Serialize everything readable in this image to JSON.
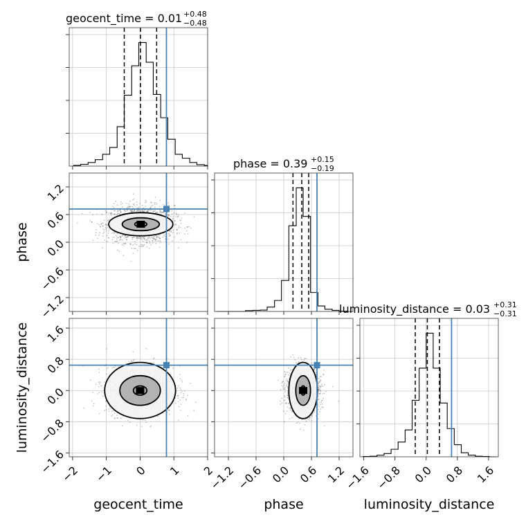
{
  "chart_data": {
    "type": "corner",
    "parameters": [
      "geocent_time",
      "phase",
      "luminosity_distance"
    ],
    "axis_labels": {
      "x": [
        "geocent_time",
        "phase",
        "luminosity_distance"
      ],
      "y": [
        "phase",
        "luminosity_distance"
      ]
    },
    "truths": [
      0.78,
      0.72,
      0.65
    ],
    "truth_color": "#4682b4",
    "ranges": [
      [
        -2.1,
        2.0
      ],
      [
        -1.5,
        1.5
      ],
      [
        -1.7,
        1.85
      ]
    ],
    "ticks": [
      {
        "values": [
          -2,
          -1,
          0,
          1,
          2
        ],
        "labels": [
          "−2",
          "−1",
          "0",
          "1",
          "2"
        ]
      },
      {
        "values": [
          -1.2,
          -0.6,
          0.0,
          0.6,
          1.2
        ],
        "labels": [
          "−1.2",
          "−0.6",
          "0.0",
          "0.6",
          "1.2"
        ]
      },
      {
        "values": [
          -1.6,
          -0.8,
          0.0,
          0.8,
          1.6
        ],
        "labels": [
          "−1.6",
          "−0.8",
          "0.0",
          "0.8",
          "1.6"
        ]
      }
    ],
    "marginals": [
      {
        "title": "geocent_time = 0.01",
        "title_upper": "+0.48",
        "title_lower": "−0.48",
        "median": 0.01,
        "lower": -0.47,
        "upper": 0.49,
        "bin_edges": [
          -1.97,
          -1.76,
          -1.54,
          -1.33,
          -1.11,
          -0.9,
          -0.68,
          -0.47,
          -0.25,
          -0.04,
          0.18,
          0.39,
          0.61,
          0.82,
          1.04,
          1.25,
          1.47,
          1.68,
          1.9,
          2.0
        ],
        "counts": [
          2,
          5,
          10,
          18,
          33,
          52,
          110,
          198,
          280,
          345,
          290,
          200,
          135,
          75,
          33,
          22,
          10,
          4,
          2
        ]
      },
      {
        "title": "phase = 0.39",
        "title_upper": "+0.15",
        "title_lower": "−0.19",
        "median": 0.39,
        "lower": 0.2,
        "upper": 0.54,
        "bin_edges": [
          -1.45,
          -1.29,
          -1.14,
          -0.98,
          -0.83,
          -0.67,
          -0.51,
          -0.36,
          -0.2,
          -0.05,
          0.11,
          0.27,
          0.42,
          0.58,
          0.74,
          0.89,
          1.05,
          1.2,
          1.36,
          1.5
        ],
        "counts": [
          0,
          0,
          0,
          0,
          3,
          4,
          5,
          16,
          40,
          113,
          312,
          450,
          346,
          69,
          20,
          8,
          4,
          1,
          0
        ]
      },
      {
        "title": "luminosity_distance = 0.03",
        "title_upper": "+0.31",
        "title_lower": "−0.31",
        "median": 0.03,
        "lower": -0.28,
        "upper": 0.34,
        "bin_edges": [
          -1.62,
          -1.44,
          -1.26,
          -1.08,
          -0.9,
          -0.72,
          -0.54,
          -0.36,
          -0.18,
          0.0,
          0.18,
          0.36,
          0.54,
          0.72,
          0.9,
          1.08,
          1.26,
          1.44,
          1.62,
          1.8
        ],
        "counts": [
          1,
          2,
          6,
          12,
          28,
          55,
          100,
          210,
          330,
          460,
          330,
          200,
          105,
          45,
          15,
          6,
          2,
          1,
          0
        ]
      }
    ],
    "joint": [
      {
        "x_param": "geocent_time",
        "y_param": "phase",
        "center": [
          0.02,
          0.39
        ],
        "spread": [
          0.5,
          0.2
        ],
        "contour_half_widths": [
          [
            0.18,
            0.055
          ],
          [
            0.55,
            0.14
          ],
          [
            0.95,
            0.25
          ]
        ]
      },
      {
        "x_param": "geocent_time",
        "y_param": "luminosity_distance",
        "center": [
          0.0,
          0.0
        ],
        "spread": [
          0.5,
          0.3
        ],
        "contour_half_widths": [
          [
            0.2,
            0.12
          ],
          [
            0.6,
            0.38
          ],
          [
            1.05,
            0.72
          ]
        ]
      },
      {
        "x_param": "phase",
        "y_param": "luminosity_distance",
        "center": [
          0.42,
          0.0
        ],
        "spread": [
          0.18,
          0.3
        ],
        "contour_half_widths": [
          [
            0.05,
            0.12
          ],
          [
            0.16,
            0.38
          ],
          [
            0.31,
            0.72
          ]
        ]
      }
    ]
  }
}
